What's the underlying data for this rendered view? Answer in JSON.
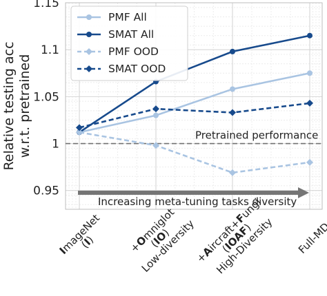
{
  "chart_data": {
    "type": "line",
    "title": "",
    "xlabel": "",
    "ylabel": "Relative testing acc\nw.r.t. pretrained",
    "ylim": [
      0.93,
      1.15
    ],
    "yticks": [
      0.95,
      1,
      1.05,
      1.1,
      1.15
    ],
    "ytick_labels": [
      "0.95",
      "1",
      "1.05",
      "1.1",
      "1.15"
    ],
    "grid": true,
    "legend_position": "top-left",
    "categories": [
      [
        {
          "b": "I"
        },
        {
          "t": "mageNet"
        },
        {
          "br": true
        },
        {
          "t": "("
        },
        {
          "b": "I"
        },
        {
          "t": ")"
        }
      ],
      [
        {
          "t": "+"
        },
        {
          "b": "O"
        },
        {
          "t": "mniglot"
        },
        {
          "br": true
        },
        {
          "t": "("
        },
        {
          "b": "IO"
        },
        {
          "t": ")"
        },
        {
          "br": true
        },
        {
          "t": "Low-diversity"
        }
      ],
      [
        {
          "t": "+"
        },
        {
          "b": "A"
        },
        {
          "t": "ircraft+"
        },
        {
          "b": "F"
        },
        {
          "t": "ungi"
        },
        {
          "br": true
        },
        {
          "t": "("
        },
        {
          "b": "IOAF"
        },
        {
          "t": ")"
        },
        {
          "br": true
        },
        {
          "t": "High-Diversity"
        }
      ],
      [
        {
          "t": "Full-MD"
        }
      ]
    ],
    "series": [
      {
        "name": "PMF All",
        "values": [
          1.012,
          1.03,
          1.058,
          1.075
        ],
        "color": "#a9c4e2",
        "dash": false,
        "marker": "circle"
      },
      {
        "name": "SMAT All",
        "values": [
          1.012,
          1.066,
          1.098,
          1.115
        ],
        "color": "#174a8c",
        "dash": false,
        "marker": "circle"
      },
      {
        "name": "PMF OOD",
        "values": [
          1.012,
          0.998,
          0.969,
          0.98
        ],
        "color": "#a9c4e2",
        "dash": true,
        "marker": "diamond"
      },
      {
        "name": "SMAT OOD",
        "values": [
          1.017,
          1.037,
          1.033,
          1.043
        ],
        "color": "#174a8c",
        "dash": true,
        "marker": "diamond"
      }
    ],
    "reference_line": {
      "value": 1.0,
      "label": "Pretrained performance",
      "color": "#707070"
    },
    "arrow": {
      "label": "Increasing meta-tuning tasks diversity",
      "color": "#757575"
    }
  }
}
